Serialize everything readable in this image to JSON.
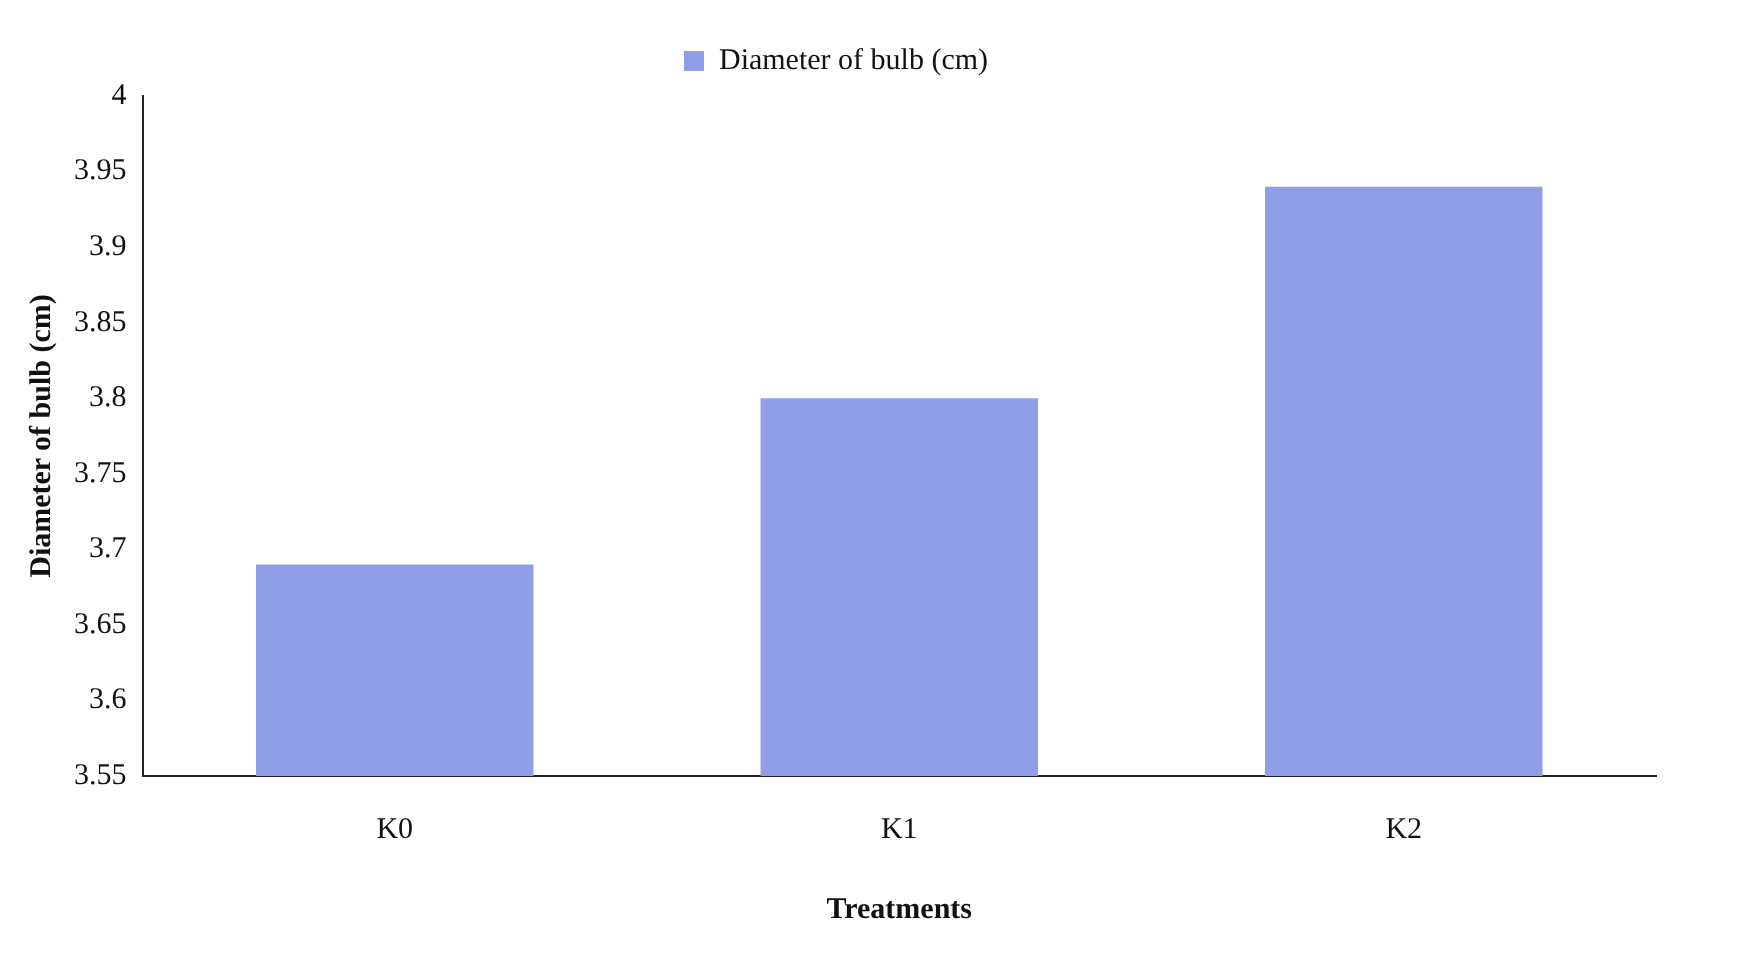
{
  "chart_data": {
    "type": "bar",
    "xlabel": "Treatments",
    "ylabel": "Diameter of bulb (cm)",
    "categories": [
      "K0",
      "K1",
      "K2"
    ],
    "series": [
      {
        "name": "Diameter of bulb (cm)",
        "color": "#8f9ee6",
        "values": [
          3.69,
          3.8,
          3.94
        ]
      }
    ],
    "ylim": [
      3.55,
      4
    ],
    "yticks": [
      3.55,
      3.6,
      3.65,
      3.7,
      3.75,
      3.8,
      3.85,
      3.9,
      3.95,
      4
    ],
    "legend": "top",
    "grid": false
  }
}
